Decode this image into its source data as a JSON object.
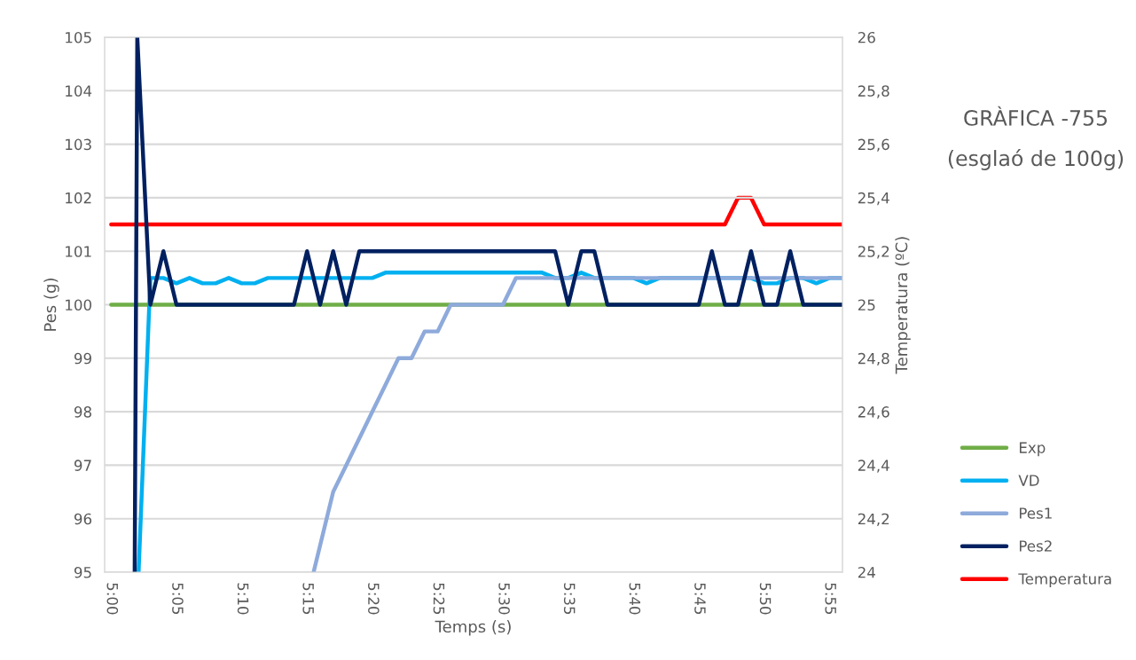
{
  "chart_data": {
    "type": "line",
    "title": "GRÀFICA -755",
    "subtitle": "(esglaó de 100g)",
    "xlabel": "Temps (s)",
    "ylabel": "Pes (g)",
    "y2label": "Temperatura (ºC)",
    "xlim": [
      299.5,
      356
    ],
    "xticks": [
      {
        "value": 300,
        "label": "5:00"
      },
      {
        "value": 305,
        "label": "5:05"
      },
      {
        "value": 310,
        "label": "5:10"
      },
      {
        "value": 315,
        "label": "5:15"
      },
      {
        "value": 320,
        "label": "5:20"
      },
      {
        "value": 325,
        "label": "5:25"
      },
      {
        "value": 330,
        "label": "5:30"
      },
      {
        "value": 335,
        "label": "5:35"
      },
      {
        "value": 340,
        "label": "5:40"
      },
      {
        "value": 345,
        "label": "5:45"
      },
      {
        "value": 350,
        "label": "5:50"
      },
      {
        "value": 355,
        "label": "5:55"
      }
    ],
    "ylim": [
      95,
      105
    ],
    "yticks": [
      95,
      96,
      97,
      98,
      99,
      100,
      101,
      102,
      103,
      104,
      105
    ],
    "y2lim": [
      24,
      26
    ],
    "y2ticks": [
      24,
      {
        "value": 24.2,
        "label": "24,2"
      },
      {
        "value": 24.4,
        "label": "24,4"
      },
      {
        "value": 24.6,
        "label": "24,6"
      },
      {
        "value": 24.8,
        "label": "24,8"
      },
      25,
      {
        "value": 25.2,
        "label": "25,2"
      },
      {
        "value": 25.4,
        "label": "25,4"
      },
      {
        "value": 25.6,
        "label": "25,6"
      },
      {
        "value": 25.8,
        "label": "25,8"
      },
      26
    ],
    "grid": "y",
    "legend": "right",
    "marker": "none",
    "line_style": "solid",
    "series": [
      {
        "name": "Exp",
        "color": "#70ad47",
        "x": [
          300,
          356
        ],
        "values": [
          100,
          100
        ]
      },
      {
        "name": "VD",
        "color": "#00b0f0",
        "x": [
          302.1,
          303,
          304,
          305,
          306,
          307,
          308,
          309,
          310,
          311,
          312,
          320,
          321,
          333,
          334,
          335,
          336,
          337,
          340,
          341,
          342,
          349,
          350,
          351,
          352,
          353,
          354,
          355,
          356
        ],
        "values": [
          95,
          100.5,
          100.5,
          100.4,
          100.5,
          100.4,
          100.4,
          100.5,
          100.4,
          100.4,
          100.5,
          100.5,
          100.6,
          100.6,
          100.5,
          100.5,
          100.6,
          100.5,
          100.5,
          100.4,
          100.5,
          100.5,
          100.4,
          100.4,
          100.5,
          100.5,
          100.4,
          100.5,
          100.5
        ]
      },
      {
        "name": "Pes1",
        "color": "#8eaadb",
        "x": [
          315.5,
          317,
          318,
          319,
          320,
          321,
          322,
          323,
          324,
          325,
          326,
          330,
          331,
          356
        ],
        "values": [
          95,
          96.5,
          97,
          97.5,
          98,
          98.5,
          99,
          99,
          99.5,
          99.5,
          100,
          100,
          100.5,
          100.5
        ]
      },
      {
        "name": "Pes2",
        "color": "#002060",
        "x": [
          301.8,
          302,
          303,
          304,
          305,
          314,
          315,
          316,
          317,
          318,
          319,
          334,
          335,
          336,
          337,
          338,
          345,
          346,
          347,
          348,
          349,
          350,
          351,
          352,
          353,
          356
        ],
        "values": [
          95,
          105,
          100,
          101,
          100,
          100,
          101,
          100,
          101,
          100,
          101,
          101,
          100,
          101,
          101,
          100,
          100,
          101,
          100,
          100,
          101,
          100,
          100,
          101,
          100,
          100
        ]
      },
      {
        "name": "Temperatura",
        "color": "#ff0000",
        "axis": "y2",
        "x": [
          300,
          347,
          348,
          349,
          350,
          356
        ],
        "values": [
          25.3,
          25.3,
          25.4,
          25.4,
          25.3,
          25.3
        ]
      }
    ]
  }
}
